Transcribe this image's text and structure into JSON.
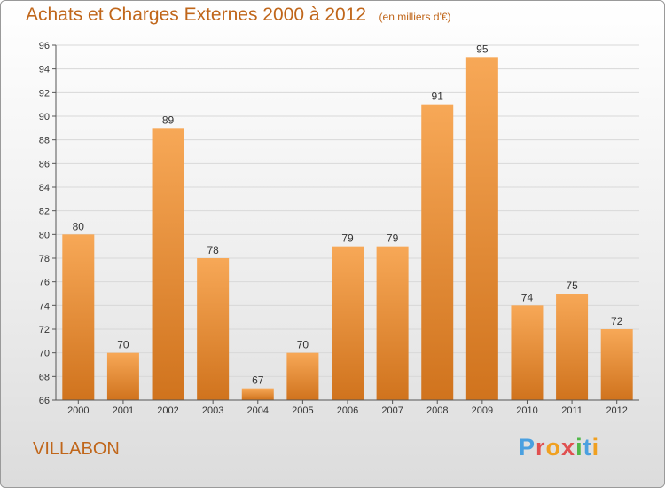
{
  "header": {
    "title": "Achats et Charges Externes 2000 à 2012",
    "unit": "(en milliers d'€)"
  },
  "footer": {
    "city": "VILLABON",
    "logo_text": "Proxiti"
  },
  "colors": {
    "accent": "#c0661a",
    "bar_top": "#f7a857",
    "bar_bottom": "#d0731d",
    "grid": "#d8d8d8",
    "logo_letters": [
      "#4aa0e0",
      "#e05050",
      "#f0a020",
      "#e05050",
      "#50b848",
      "#4aa0e0",
      "#f0a020"
    ]
  },
  "chart_data": {
    "type": "bar",
    "title": "Achats et Charges Externes 2000 à 2012",
    "subtitle": "(en milliers d'€)",
    "categories": [
      "2000",
      "2001",
      "2002",
      "2003",
      "2004",
      "2005",
      "2006",
      "2007",
      "2008",
      "2009",
      "2010",
      "2011",
      "2012"
    ],
    "values": [
      80,
      70,
      89,
      78,
      67,
      70,
      79,
      79,
      91,
      95,
      74,
      75,
      72
    ],
    "data_labels": [
      "80",
      "70",
      "89",
      "78",
      "67",
      "70",
      "79",
      "79",
      "91",
      "95",
      "74",
      "75",
      "72"
    ],
    "xlabel": "",
    "ylabel": "",
    "ylim": [
      66,
      96
    ],
    "yticks": [
      "66",
      "68",
      "70",
      "72",
      "74",
      "76",
      "78",
      "80",
      "82",
      "84",
      "86",
      "88",
      "90",
      "92",
      "94",
      "96"
    ],
    "grid": true,
    "legend": "none"
  }
}
